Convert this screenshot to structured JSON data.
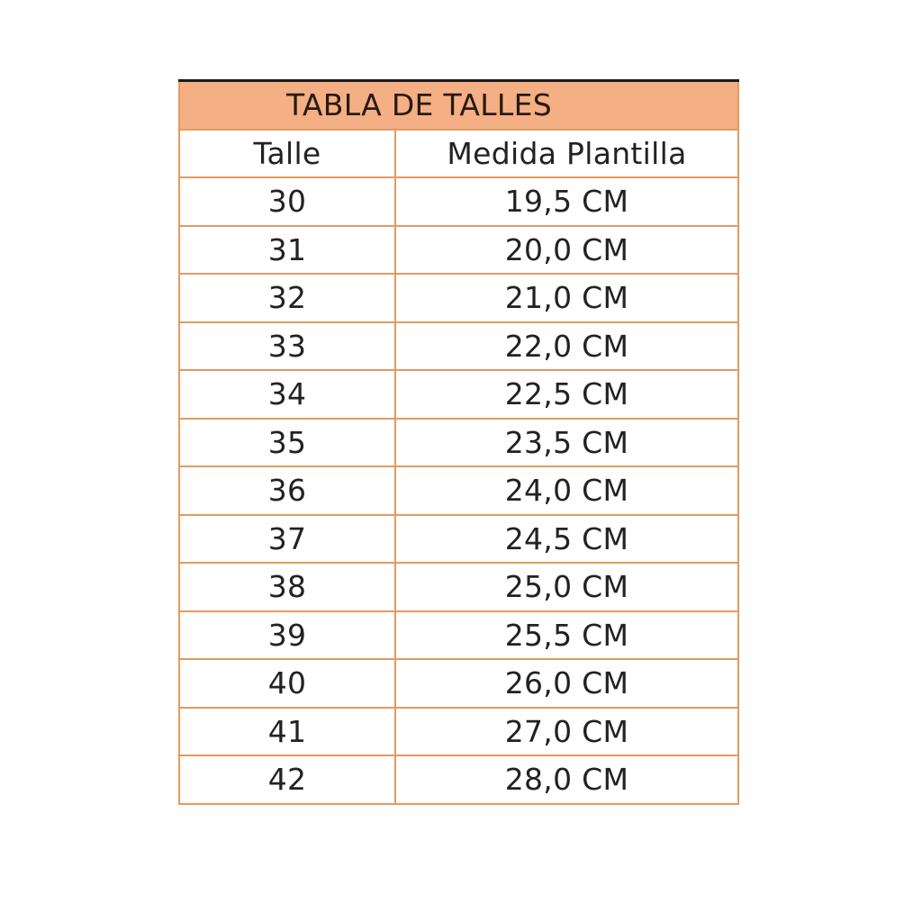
{
  "title": "TABLA DE TALLES",
  "headers": [
    "Talle",
    "Medida Plantilla"
  ],
  "rows": [
    [
      "30",
      "19,5 CM"
    ],
    [
      "31",
      "20,0 CM"
    ],
    [
      "32",
      "21,0 CM"
    ],
    [
      "33",
      "22,0 CM"
    ],
    [
      "34",
      "22,5 CM"
    ],
    [
      "35",
      "23,5 CM"
    ],
    [
      "36",
      "24,0 CM"
    ],
    [
      "37",
      "24,5 CM"
    ],
    [
      "38",
      "25,0 CM"
    ],
    [
      "39",
      "25,5 CM"
    ],
    [
      "40",
      "26,0 CM"
    ],
    [
      "41",
      "27,0 CM"
    ],
    [
      "42",
      "28,0 CM"
    ]
  ],
  "colors": {
    "header_fill": "#f4b084",
    "border": "#e39a63"
  }
}
